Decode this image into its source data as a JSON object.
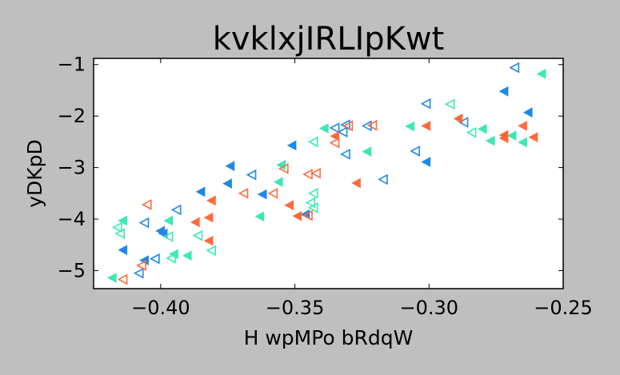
{
  "chart_data": {
    "type": "scatter",
    "title": "kvklxjIRLIpKwt",
    "xlabel": "H wpMPo bRdqW",
    "ylabel": "yDKpD",
    "xlim": [
      -0.425,
      -0.25
    ],
    "ylim": [
      -5.35,
      -0.88
    ],
    "xticks": [
      -0.4,
      -0.35,
      -0.3,
      -0.25
    ],
    "xtick_labels": [
      "−0.40",
      "−0.35",
      "−0.30",
      "−0.25"
    ],
    "yticks": [
      -5,
      -4,
      -3,
      -2,
      -1
    ],
    "ytick_labels": [
      "−5",
      "−4",
      "−3",
      "−2",
      "−1"
    ],
    "grid": false,
    "series": [
      {
        "color": "#1e88e5",
        "marker": "triangle-left",
        "fill": "filled",
        "points": [
          [
            -0.414,
            -4.6
          ],
          [
            -0.406,
            -4.8
          ],
          [
            -0.4,
            -4.23
          ],
          [
            -0.399,
            -4.28
          ],
          [
            -0.385,
            -3.47
          ],
          [
            -0.375,
            -3.31
          ],
          [
            -0.374,
            -2.97
          ],
          [
            -0.362,
            -3.52
          ],
          [
            -0.351,
            -2.57
          ],
          [
            -0.346,
            -3.91
          ],
          [
            -0.301,
            -2.89
          ],
          [
            -0.272,
            -1.52
          ],
          [
            -0.263,
            -1.93
          ]
        ]
      },
      {
        "color": "#1e88e5",
        "marker": "triangle-left",
        "fill": "hollow",
        "points": [
          [
            -0.408,
            -5.05
          ],
          [
            -0.406,
            -4.07
          ],
          [
            -0.402,
            -4.77
          ],
          [
            -0.394,
            -3.82
          ],
          [
            -0.366,
            -3.14
          ],
          [
            -0.335,
            -2.23
          ],
          [
            -0.332,
            -2.31
          ],
          [
            -0.331,
            -2.17
          ],
          [
            -0.331,
            -2.74
          ],
          [
            -0.323,
            -2.19
          ],
          [
            -0.317,
            -3.23
          ],
          [
            -0.305,
            -2.68
          ],
          [
            -0.301,
            -1.76
          ],
          [
            -0.287,
            -2.12
          ],
          [
            -0.268,
            -1.06
          ]
        ]
      },
      {
        "color": "#3de8b5",
        "marker": "triangle-left",
        "fill": "filled",
        "points": [
          [
            -0.418,
            -5.14
          ],
          [
            -0.414,
            -4.03
          ],
          [
            -0.397,
            -4.03
          ],
          [
            -0.395,
            -4.68
          ],
          [
            -0.39,
            -4.71
          ],
          [
            -0.363,
            -3.95
          ],
          [
            -0.356,
            -3.28
          ],
          [
            -0.355,
            -2.95
          ],
          [
            -0.339,
            -2.24
          ],
          [
            -0.323,
            -2.69
          ],
          [
            -0.307,
            -2.2
          ],
          [
            -0.28,
            -2.25
          ],
          [
            -0.277,
            -2.48
          ],
          [
            -0.269,
            -2.38
          ],
          [
            -0.265,
            -2.51
          ],
          [
            -0.258,
            -1.18
          ]
        ]
      },
      {
        "color": "#3de8b5",
        "marker": "triangle-left",
        "fill": "hollow",
        "points": [
          [
            -0.416,
            -4.16
          ],
          [
            -0.415,
            -4.28
          ],
          [
            -0.397,
            -4.34
          ],
          [
            -0.396,
            -4.76
          ],
          [
            -0.386,
            -4.32
          ],
          [
            -0.381,
            -4.61
          ],
          [
            -0.343,
            -3.5
          ],
          [
            -0.343,
            -3.78
          ],
          [
            -0.343,
            -2.5
          ],
          [
            -0.344,
            -3.68
          ],
          [
            -0.292,
            -1.77
          ],
          [
            -0.284,
            -2.32
          ]
        ]
      },
      {
        "color": "#ff6a3d",
        "marker": "triangle-left",
        "fill": "filled",
        "points": [
          [
            -0.387,
            -4.06
          ],
          [
            -0.382,
            -3.97
          ],
          [
            -0.382,
            -4.42
          ],
          [
            -0.381,
            -3.64
          ],
          [
            -0.352,
            -3.73
          ],
          [
            -0.349,
            -3.94
          ],
          [
            -0.335,
            -2.39
          ],
          [
            -0.327,
            -3.3
          ],
          [
            -0.301,
            -2.19
          ],
          [
            -0.289,
            -2.05
          ],
          [
            -0.272,
            -2.37
          ],
          [
            -0.272,
            -2.43
          ],
          [
            -0.265,
            -2.19
          ],
          [
            -0.261,
            -2.41
          ]
        ]
      },
      {
        "color": "#ff6a3d",
        "marker": "triangle-left",
        "fill": "hollow",
        "points": [
          [
            -0.414,
            -5.17
          ],
          [
            -0.407,
            -4.9
          ],
          [
            -0.405,
            -3.72
          ],
          [
            -0.369,
            -3.5
          ],
          [
            -0.358,
            -3.5
          ],
          [
            -0.354,
            -3.02
          ],
          [
            -0.345,
            -3.13
          ],
          [
            -0.345,
            -3.93
          ],
          [
            -0.342,
            -3.11
          ],
          [
            -0.335,
            -2.52
          ],
          [
            -0.33,
            -2.19
          ],
          [
            -0.321,
            -2.18
          ]
        ]
      }
    ]
  }
}
